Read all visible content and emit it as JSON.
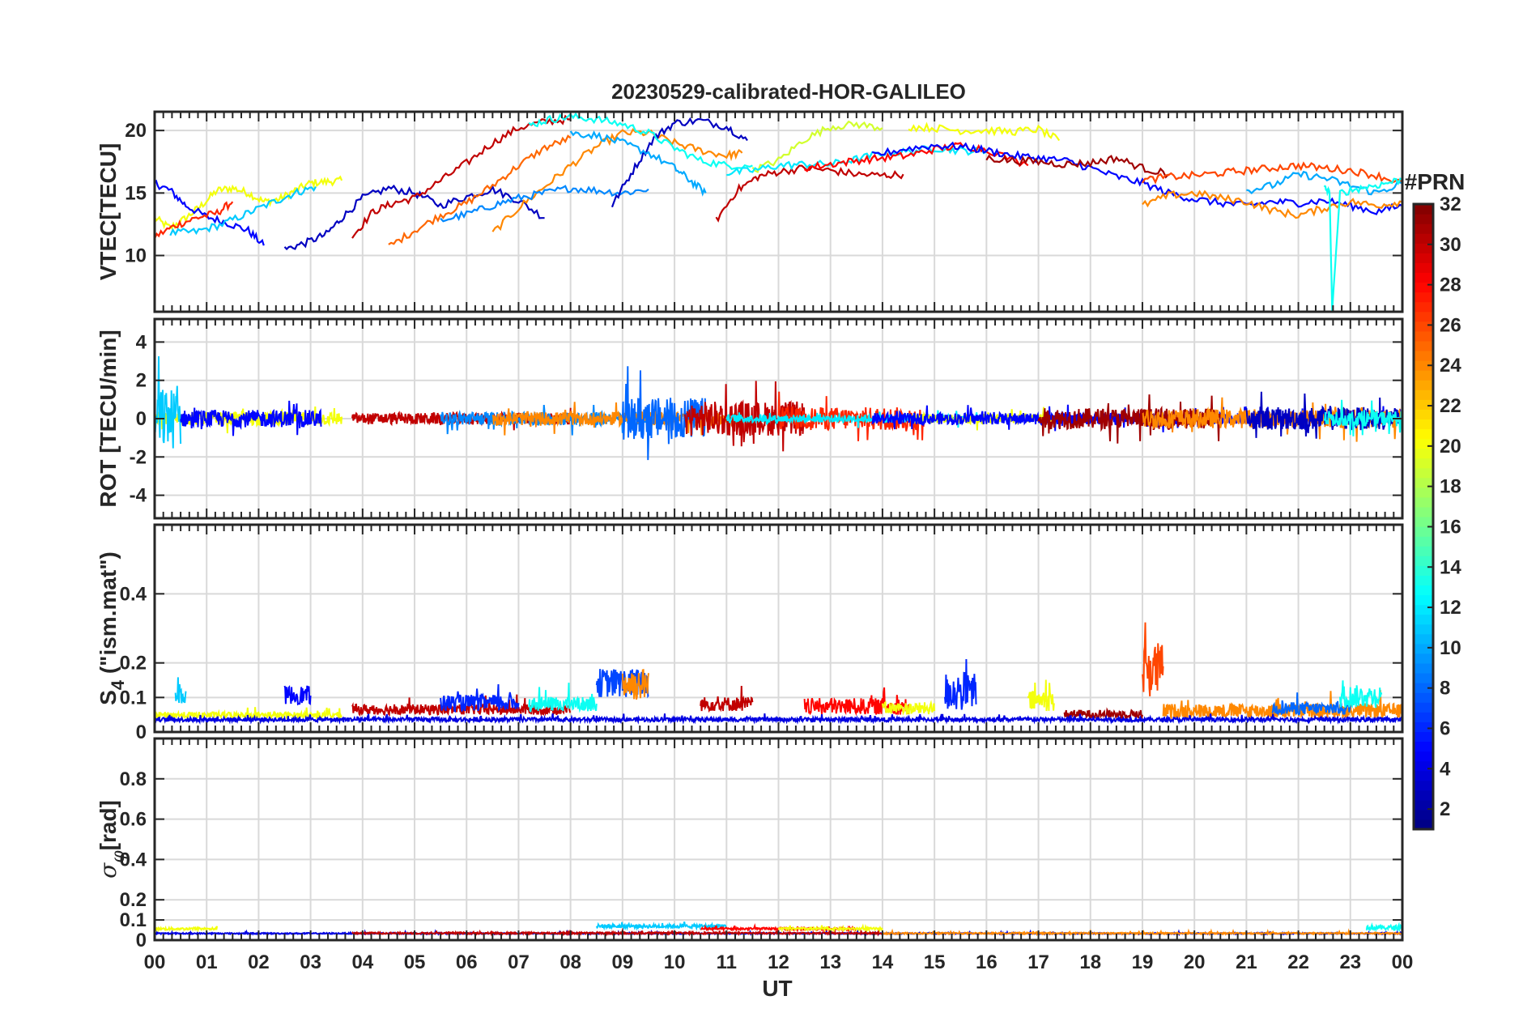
{
  "chart_data": {
    "type": "line",
    "title": "20230529-calibrated-HOR-GALILEO",
    "xlabel": "UT",
    "x_tick_labels": [
      "00",
      "01",
      "02",
      "03",
      "04",
      "05",
      "06",
      "07",
      "08",
      "09",
      "10",
      "11",
      "12",
      "13",
      "14",
      "15",
      "16",
      "17",
      "18",
      "19",
      "20",
      "21",
      "22",
      "23",
      "00"
    ],
    "xlim_hours": [
      0,
      24
    ],
    "grid": true,
    "colorbar": {
      "title": "#PRN",
      "range": [
        1,
        32
      ],
      "ticks": [
        "2",
        "4",
        "6",
        "8",
        "10",
        "12",
        "14",
        "16",
        "18",
        "20",
        "22",
        "24",
        "26",
        "28",
        "30",
        "32"
      ],
      "colormap": "jet",
      "placement": "right"
    },
    "panels": [
      {
        "id": "vtec",
        "ylabel": "VTEC[TECU]",
        "ylim": [
          5.5,
          21.5
        ],
        "yticks": [
          "10",
          "15",
          "20"
        ],
        "tracks": [
          {
            "prn": 20,
            "x": [
              0.0,
              0.3,
              0.6,
              0.9,
              1.2,
              1.5,
              1.8,
              2.1,
              2.4,
              2.7,
              3.0,
              3.3,
              3.6
            ],
            "y": [
              13.0,
              12.2,
              13.0,
              14.0,
              15.2,
              15.4,
              15.0,
              14.3,
              14.5,
              15.2,
              15.8,
              15.9,
              16.0
            ]
          },
          {
            "prn": 5,
            "x": [
              0.0,
              0.3,
              0.6,
              1.0,
              1.4,
              1.8,
              2.1
            ],
            "y": [
              15.8,
              15.2,
              14.0,
              13.1,
              12.6,
              12.0,
              10.8
            ]
          },
          {
            "prn": 27,
            "x": [
              0.0,
              0.4,
              0.8,
              1.2,
              1.5
            ],
            "y": [
              11.5,
              12.4,
              13.0,
              13.4,
              14.3
            ]
          },
          {
            "prn": 11,
            "x": [
              0.3,
              0.8,
              1.3,
              1.8,
              2.3,
              2.7,
              3.1
            ],
            "y": [
              11.8,
              11.9,
              12.5,
              13.4,
              14.3,
              15.0,
              15.5
            ]
          },
          {
            "prn": 3,
            "x": [
              2.5,
              2.9,
              3.3,
              3.6,
              4.0,
              4.5,
              5.0,
              5.5,
              6.0,
              6.5,
              7.0,
              7.5
            ],
            "y": [
              10.5,
              11.0,
              11.7,
              13.0,
              14.6,
              15.4,
              15.0,
              14.0,
              14.7,
              15.3,
              14.4,
              13.0
            ]
          },
          {
            "prn": 30,
            "x": [
              3.8,
              4.2,
              4.6,
              5.0,
              5.5,
              6.0,
              6.5,
              7.0,
              7.5,
              8.0
            ],
            "y": [
              11.5,
              13.5,
              14.2,
              14.6,
              16.0,
              17.4,
              19.0,
              20.2,
              20.7,
              20.9
            ]
          },
          {
            "prn": 25,
            "x": [
              4.5,
              5.0,
              5.5,
              6.0,
              6.5,
              7.0,
              7.5,
              8.0
            ],
            "y": [
              10.7,
              12.0,
              13.2,
              14.2,
              15.6,
              17.2,
              18.6,
              19.4
            ]
          },
          {
            "prn": 24,
            "x": [
              6.5,
              7.0,
              7.5,
              8.0,
              8.5,
              9.0,
              9.5,
              10.0,
              10.5,
              11.0,
              11.3
            ],
            "y": [
              11.8,
              13.8,
              15.5,
              17.2,
              18.7,
              19.8,
              19.8,
              19.0,
              18.4,
              18.0,
              18.2
            ]
          },
          {
            "prn": 9,
            "x": [
              5.5,
              6.0,
              6.5,
              7.0,
              7.5,
              8.0,
              8.5,
              9.0,
              9.5
            ],
            "y": [
              12.8,
              13.3,
              14.0,
              14.6,
              15.0,
              15.4,
              15.2,
              15.0,
              15.3
            ]
          },
          {
            "prn": 3,
            "x": [
              8.8,
              9.2,
              9.6,
              10.0,
              10.5,
              11.0,
              11.4
            ],
            "y": [
              14.0,
              16.8,
              19.4,
              20.6,
              20.8,
              20.3,
              19.2
            ]
          },
          {
            "prn": 13,
            "x": [
              7.2,
              7.6,
              8.0,
              8.5,
              9.0,
              9.5,
              10.0,
              10.5,
              11.0,
              11.5
            ],
            "y": [
              20.4,
              20.9,
              21.1,
              20.9,
              20.5,
              19.8,
              18.6,
              17.6,
              17.2,
              17.2
            ]
          },
          {
            "prn": 10,
            "x": [
              8.0,
              8.5,
              9.0,
              9.5,
              10.0,
              10.3,
              10.6
            ],
            "y": [
              19.8,
              19.6,
              19.0,
              18.2,
              17.0,
              16.0,
              15.0
            ]
          },
          {
            "prn": 30,
            "x": [
              10.8,
              11.2,
              11.6,
              12.0,
              12.5,
              13.0,
              13.5,
              14.0,
              14.4
            ],
            "y": [
              12.8,
              15.2,
              16.3,
              16.7,
              17.0,
              16.8,
              16.5,
              16.4,
              16.5
            ]
          },
          {
            "prn": 19,
            "x": [
              11.5,
              12.0,
              12.5,
              13.0,
              13.5,
              14.0
            ],
            "y": [
              16.8,
              17.6,
              19.3,
              20.3,
              20.5,
              20.2
            ]
          },
          {
            "prn": 12,
            "x": [
              11.0,
              11.5,
              12.0,
              12.5,
              13.0,
              13.5,
              14.0,
              14.5,
              15.0,
              15.5,
              16.0
            ],
            "y": [
              16.6,
              16.8,
              17.2,
              17.3,
              17.3,
              17.7,
              18.2,
              18.3,
              18.6,
              18.4,
              18.3
            ]
          },
          {
            "prn": 28,
            "x": [
              12.5,
              13.0,
              13.5,
              14.0,
              14.5,
              15.0,
              15.5,
              16.0,
              16.8
            ],
            "y": [
              17.0,
              17.3,
              17.6,
              17.8,
              18.0,
              18.5,
              18.8,
              18.5,
              17.2
            ]
          },
          {
            "prn": 20,
            "x": [
              14.5,
              15.0,
              15.5,
              16.0,
              16.5,
              17.0,
              17.4
            ],
            "y": [
              20.3,
              20.2,
              20.0,
              20.0,
              19.9,
              20.1,
              19.2
            ]
          },
          {
            "prn": 5,
            "x": [
              13.8,
              14.4,
              15.0,
              15.5,
              16.0,
              16.5,
              17.0,
              17.5,
              18.0,
              18.5,
              19.0,
              19.5,
              20.0,
              20.5,
              21.0,
              21.5,
              22.0,
              22.5,
              23.0,
              23.5,
              24.0
            ],
            "y": [
              18.0,
              18.5,
              18.8,
              18.7,
              18.4,
              18.0,
              17.8,
              17.6,
              17.0,
              16.3,
              15.8,
              15.0,
              14.5,
              14.2,
              14.0,
              14.3,
              14.2,
              14.4,
              14.0,
              13.5,
              14.0
            ]
          },
          {
            "prn": 31,
            "x": [
              16.0,
              16.5,
              17.0,
              17.5,
              18.0,
              18.5,
              19.0,
              19.5
            ],
            "y": [
              17.8,
              17.6,
              17.5,
              17.3,
              17.4,
              17.8,
              17.0,
              16.5
            ]
          },
          {
            "prn": 26,
            "x": [
              19.0,
              19.5,
              20.0,
              20.5,
              21.0,
              21.5,
              22.0,
              22.5,
              23.0,
              23.5,
              24.0
            ],
            "y": [
              16.0,
              16.3,
              16.4,
              16.6,
              16.8,
              17.0,
              17.2,
              17.0,
              16.8,
              16.4,
              15.8
            ]
          },
          {
            "prn": 24,
            "x": [
              19.0,
              19.5,
              20.0,
              20.5,
              21.0,
              21.5,
              22.0,
              22.5,
              23.0,
              23.5,
              24.0
            ],
            "y": [
              14.0,
              14.8,
              15.0,
              14.6,
              14.3,
              13.6,
              13.2,
              13.8,
              14.3,
              14.0,
              14.3
            ]
          },
          {
            "prn": 10,
            "x": [
              21.0,
              21.5,
              22.0,
              22.5,
              23.0,
              23.5,
              24.0
            ],
            "y": [
              15.2,
              15.6,
              16.5,
              16.2,
              15.6,
              15.0,
              15.8
            ]
          },
          {
            "prn": 13,
            "x": [
              22.5,
              22.6,
              22.65,
              22.8,
              23.2,
              23.6,
              24.0
            ],
            "y": [
              15.4,
              15.0,
              5.6,
              15.0,
              15.4,
              15.7,
              16.1
            ]
          }
        ]
      },
      {
        "id": "rot",
        "ylabel": "ROT [TECU/min]",
        "ylim": [
          -5.2,
          5.2
        ],
        "yticks": [
          "-4",
          "-2",
          "0",
          "2",
          "4"
        ],
        "noise_tracks": [
          {
            "prn": 20,
            "x_start": 0.0,
            "x_end": 3.6,
            "amp": 0.35
          },
          {
            "prn": 11,
            "x_start": 0.0,
            "x_end": 0.5,
            "amp": 1.6
          },
          {
            "prn": 5,
            "x_start": 0.5,
            "x_end": 3.2,
            "amp": 0.45
          },
          {
            "prn": 30,
            "x_start": 3.8,
            "x_end": 8.0,
            "amp": 0.3
          },
          {
            "prn": 9,
            "x_start": 5.5,
            "x_end": 9.5,
            "amp": 0.35
          },
          {
            "prn": 24,
            "x_start": 6.5,
            "x_end": 11.3,
            "amp": 0.35
          },
          {
            "prn": 8,
            "x_start": 9.0,
            "x_end": 10.6,
            "amp": 1.1
          },
          {
            "prn": 30,
            "x_start": 10.2,
            "x_end": 12.5,
            "amp": 0.9
          },
          {
            "prn": 27,
            "x_start": 12.0,
            "x_end": 14.8,
            "amp": 0.6
          },
          {
            "prn": 12,
            "x_start": 11.0,
            "x_end": 16.0,
            "amp": 0.2
          },
          {
            "prn": 20,
            "x_start": 14.5,
            "x_end": 17.4,
            "amp": 0.25
          },
          {
            "prn": 5,
            "x_start": 13.8,
            "x_end": 24.0,
            "amp": 0.3
          },
          {
            "prn": 31,
            "x_start": 17.0,
            "x_end": 20.5,
            "amp": 0.55
          },
          {
            "prn": 24,
            "x_start": 19.0,
            "x_end": 24.0,
            "amp": 0.5
          },
          {
            "prn": 3,
            "x_start": 21.0,
            "x_end": 24.0,
            "amp": 0.6
          },
          {
            "prn": 13,
            "x_start": 22.5,
            "x_end": 24.0,
            "amp": 0.4
          }
        ]
      },
      {
        "id": "s4",
        "ylabel": "S₄ (\"ism.mat\")",
        "ylim": [
          0,
          0.6
        ],
        "yticks": [
          "0",
          "0.1",
          "0.2",
          "0.4"
        ],
        "noise_tracks": [
          {
            "prn": 20,
            "x_start": 0.0,
            "x_end": 3.6,
            "base": 0.04,
            "amp": 0.03
          },
          {
            "prn": 11,
            "x_start": 0.4,
            "x_end": 0.6,
            "base": 0.08,
            "amp": 0.08
          },
          {
            "prn": 5,
            "x_start": 2.5,
            "x_end": 3.0,
            "base": 0.08,
            "amp": 0.09
          },
          {
            "prn": 30,
            "x_start": 3.8,
            "x_end": 8.0,
            "base": 0.05,
            "amp": 0.05
          },
          {
            "prn": 6,
            "x_start": 5.5,
            "x_end": 7.0,
            "base": 0.06,
            "amp": 0.08
          },
          {
            "prn": 13,
            "x_start": 7.2,
            "x_end": 8.5,
            "base": 0.06,
            "amp": 0.07
          },
          {
            "prn": 7,
            "x_start": 8.5,
            "x_end": 9.5,
            "base": 0.1,
            "amp": 0.14
          },
          {
            "prn": 24,
            "x_start": 9.0,
            "x_end": 9.5,
            "base": 0.09,
            "amp": 0.16
          },
          {
            "prn": 30,
            "x_start": 10.5,
            "x_end": 11.5,
            "base": 0.06,
            "amp": 0.07
          },
          {
            "prn": 28,
            "x_start": 12.5,
            "x_end": 14.5,
            "base": 0.05,
            "amp": 0.08
          },
          {
            "prn": 20,
            "x_start": 14.0,
            "x_end": 15.0,
            "base": 0.05,
            "amp": 0.06
          },
          {
            "prn": 6,
            "x_start": 15.2,
            "x_end": 15.8,
            "base": 0.06,
            "amp": 0.19
          },
          {
            "prn": 20,
            "x_start": 16.8,
            "x_end": 17.3,
            "base": 0.06,
            "amp": 0.1
          },
          {
            "prn": 31,
            "x_start": 17.5,
            "x_end": 19.0,
            "base": 0.04,
            "amp": 0.04
          },
          {
            "prn": 26,
            "x_start": 19.0,
            "x_end": 19.4,
            "base": 0.1,
            "amp": 0.27
          },
          {
            "prn": 24,
            "x_start": 19.4,
            "x_end": 24.0,
            "base": 0.04,
            "amp": 0.07
          },
          {
            "prn": 8,
            "x_start": 21.5,
            "x_end": 23.0,
            "base": 0.05,
            "amp": 0.06
          },
          {
            "prn": 13,
            "x_start": 22.8,
            "x_end": 23.6,
            "base": 0.07,
            "amp": 0.11
          },
          {
            "prn": 4,
            "x_start": 0.0,
            "x_end": 24.0,
            "base": 0.03,
            "amp": 0.02
          }
        ]
      },
      {
        "id": "sigphi",
        "ylabel": "σφ[rad]",
        "ylim": [
          0,
          1.0
        ],
        "yticks": [
          "0",
          "0.1",
          "0.2",
          "0.4",
          "0.6",
          "0.8"
        ],
        "noise_tracks": [
          {
            "prn": 20,
            "x_start": 0.0,
            "x_end": 1.2,
            "base": 0.05,
            "amp": 0.02
          },
          {
            "prn": 4,
            "x_start": 0.0,
            "x_end": 24.0,
            "base": 0.03,
            "amp": 0.01
          },
          {
            "prn": 30,
            "x_start": 3.8,
            "x_end": 14.0,
            "base": 0.03,
            "amp": 0.015
          },
          {
            "prn": 11,
            "x_start": 8.5,
            "x_end": 11.0,
            "base": 0.06,
            "amp": 0.03
          },
          {
            "prn": 28,
            "x_start": 10.5,
            "x_end": 13.5,
            "base": 0.05,
            "amp": 0.02
          },
          {
            "prn": 20,
            "x_start": 12.0,
            "x_end": 14.0,
            "base": 0.05,
            "amp": 0.02
          },
          {
            "prn": 24,
            "x_start": 14.0,
            "x_end": 24.0,
            "base": 0.03,
            "amp": 0.012
          },
          {
            "prn": 13,
            "x_start": 23.3,
            "x_end": 24.0,
            "base": 0.05,
            "amp": 0.04
          }
        ]
      }
    ]
  }
}
